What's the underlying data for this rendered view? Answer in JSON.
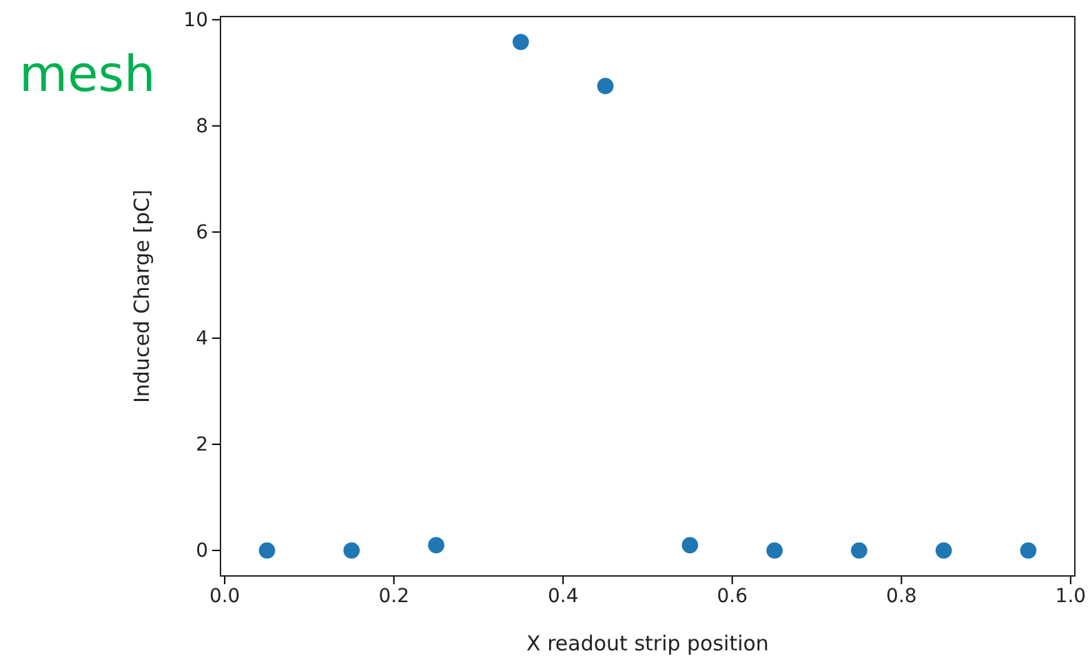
{
  "chart_data": {
    "type": "scatter",
    "xlabel": "X readout strip position",
    "ylabel": "Induced Charge [pC]",
    "x": [
      0.05,
      0.15,
      0.25,
      0.35,
      0.45,
      0.55,
      0.65,
      0.75,
      0.85,
      0.95
    ],
    "series": [
      {
        "color": "#1f77b4",
        "values": [
          0,
          0,
          0.1,
          9.58,
          8.75,
          0.1,
          0,
          0,
          0,
          0
        ]
      }
    ],
    "xlim": [
      -0.005,
      1.005
    ],
    "ylim": [
      -0.48,
      10.06
    ],
    "xticks": [
      {
        "value": 0,
        "label": "0.0"
      },
      {
        "value": 0.2,
        "label": "0.2"
      },
      {
        "value": 0.4,
        "label": "0.4"
      },
      {
        "value": 0.6,
        "label": "0.6"
      },
      {
        "value": 0.8,
        "label": "0.8"
      },
      {
        "value": 1,
        "label": "1.0"
      }
    ],
    "yticks": [
      0,
      2,
      4,
      6,
      8,
      10
    ],
    "marker": "circle",
    "grid": false,
    "annotations": [
      "mesh"
    ]
  }
}
